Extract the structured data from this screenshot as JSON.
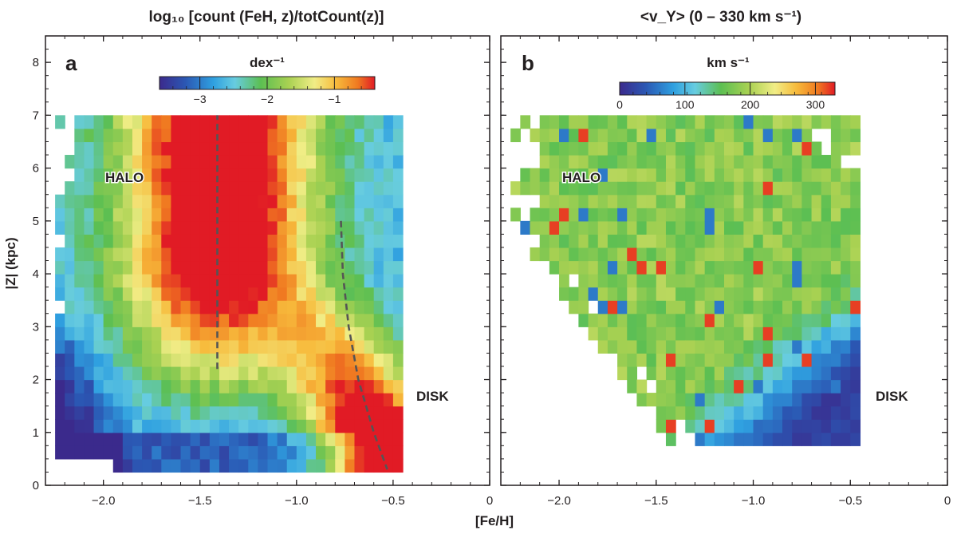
{
  "figure": {
    "xlabel": "[Fe/H]",
    "ylabel": "|Z| (kpc)"
  },
  "chart_data": [
    {
      "type": "heatmap",
      "panel_label": "a",
      "title": "log₁₀ [count (FeH, z)/totCount(z)]",
      "colorbar": {
        "label": "dex⁻¹",
        "range": [
          -3.6,
          -0.4
        ],
        "ticks": [
          -3,
          -2,
          -1
        ],
        "tick_labels": [
          "−3",
          "−2",
          "−1"
        ]
      },
      "xlim": [
        -2.3,
        0
      ],
      "ylim": [
        0,
        8.5
      ],
      "xticks": [
        -2.0,
        -1.5,
        -1.0,
        -0.5,
        0
      ],
      "xtick_labels": [
        "−2.0",
        "−1.5",
        "−1.0",
        "−0.5",
        "0"
      ],
      "yticks": [
        0,
        1,
        2,
        3,
        4,
        5,
        6,
        7,
        8
      ],
      "ytick_labels": [
        "0",
        "1",
        "2",
        "3",
        "4",
        "5",
        "6",
        "7",
        "8"
      ],
      "annotations": [
        "HALO",
        "DISK"
      ],
      "bin": {
        "dx": 0.05,
        "dz": 0.25
      },
      "x_extent": [
        -2.25,
        -0.45
      ],
      "z_extent": [
        0.25,
        7.0
      ],
      "halo_peak_feh": -1.4,
      "dashed_lines": [
        {
          "name": "halo-peak",
          "points": [
            [
              -1.41,
              2.2
            ],
            [
              -1.41,
              7.0
            ]
          ]
        },
        {
          "name": "disk-peak",
          "points": [
            [
              -0.77,
              5.0
            ],
            [
              -0.76,
              4.0
            ],
            [
              -0.73,
              3.0
            ],
            [
              -0.68,
              2.0
            ],
            [
              -0.6,
              1.0
            ],
            [
              -0.53,
              0.3
            ]
          ]
        }
      ]
    },
    {
      "type": "heatmap",
      "panel_label": "b",
      "title": "<v_Y> (0 – 330 km s⁻¹)",
      "colorbar": {
        "label": "km s⁻¹",
        "range": [
          0,
          330
        ],
        "ticks": [
          0,
          100,
          200,
          300
        ],
        "tick_labels": [
          "0",
          "100",
          "200",
          "300"
        ]
      },
      "xlim": [
        -2.3,
        0
      ],
      "ylim": [
        0,
        8.5
      ],
      "xticks": [
        -2.0,
        -1.5,
        -1.0,
        -0.5,
        0
      ],
      "xtick_labels": [
        "−2.0",
        "−1.5",
        "−1.0",
        "−0.5",
        "0"
      ],
      "yticks": [
        0,
        1,
        2,
        3,
        4,
        5,
        6,
        7,
        8
      ],
      "annotations": [
        "HALO",
        "DISK"
      ],
      "bin": {
        "dx": 0.05,
        "dz": 0.25
      },
      "x_extent": [
        -2.25,
        -0.45
      ],
      "z_extent": [
        0.75,
        7.0
      ],
      "halo_mean_vy": 180,
      "disk_mean_vy": 20
    }
  ]
}
